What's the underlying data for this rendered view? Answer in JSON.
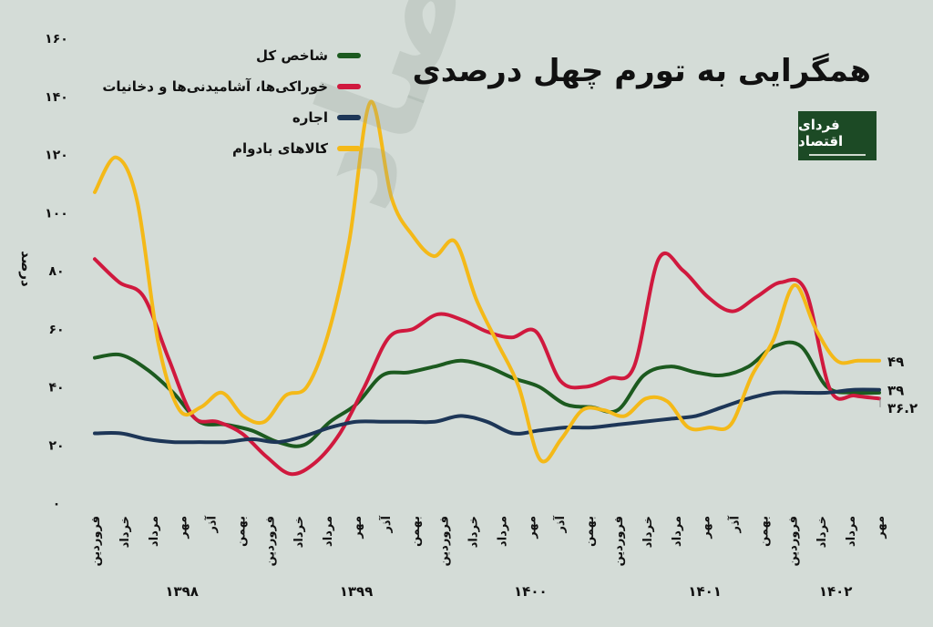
{
  "title": "همگرایی به تورم چهل درصدی",
  "logo": {
    "text": "فردای اقتصاد"
  },
  "chart_data": {
    "type": "line",
    "ylabel": "درصد",
    "ylim": [
      0,
      160
    ],
    "yticks": [
      "۰",
      "۲۰",
      "۴۰",
      "۶۰",
      "۸۰",
      "۱۰۰",
      "۱۲۰",
      "۱۴۰",
      "۱۶۰"
    ],
    "xlabel": "",
    "x_ticks": [
      "فروردین",
      "خرداد",
      "مرداد",
      "مهر",
      "آذر",
      "بهمن",
      "فروردین",
      "خرداد",
      "مرداد",
      "مهر",
      "آذر",
      "بهمن",
      "فروردین",
      "خرداد",
      "مرداد",
      "مهر",
      "آذر",
      "بهمن",
      "فروردین",
      "خرداد",
      "مرداد",
      "مهر",
      "آذر",
      "بهمن",
      "فروردین",
      "خرداد",
      "مرداد",
      "مهر"
    ],
    "year_labels": [
      {
        "label": "۱۳۹۸",
        "at": 3
      },
      {
        "label": "۱۳۹۹",
        "at": 9
      },
      {
        "label": "۱۴۰۰",
        "at": 15
      },
      {
        "label": "۱۴۰۱",
        "at": 21
      },
      {
        "label": "۱۴۰۲",
        "at": 25.5
      }
    ],
    "legend_position": "top-left",
    "end_labels": [
      {
        "label": "۴۹",
        "value": 49
      },
      {
        "label": "۳۹",
        "value": 39
      },
      {
        "label": "۳۶.۲",
        "value": 36.2
      }
    ],
    "series": [
      {
        "name": "شاخص کل",
        "color": "#1c5a1f",
        "values": [
          50,
          51,
          46,
          38,
          28,
          27,
          25,
          21,
          20,
          28,
          34,
          44,
          45,
          47,
          49,
          47,
          43,
          40,
          34,
          33,
          32,
          44,
          47,
          45,
          44,
          47,
          54,
          54,
          40,
          38,
          38
        ]
      },
      {
        "name": "خوراکی‌ها، آشامیدنی‌ها و دخانیات",
        "color": "#d0193e",
        "values": [
          84,
          76,
          71,
          50,
          30,
          28,
          24,
          16,
          10,
          14,
          24,
          40,
          57,
          60,
          65,
          63,
          59,
          57,
          59,
          42,
          40,
          43,
          47,
          84,
          80,
          71,
          66,
          71,
          76,
          73,
          39,
          37,
          36
        ]
      },
      {
        "name": "اجاره",
        "color": "#1d3657",
        "values": [
          24,
          24,
          22,
          21,
          21,
          21,
          22,
          21,
          23,
          26,
          28,
          28,
          28,
          28,
          30,
          28,
          24,
          25,
          26,
          26,
          27,
          28,
          29,
          30,
          33,
          36,
          38,
          38,
          38,
          39,
          39
        ]
      },
      {
        "name": "کالاهای بادوام",
        "color": "#f4b918",
        "values": [
          107,
          119,
          104,
          55,
          32,
          33,
          38,
          30,
          28,
          37,
          40,
          58,
          90,
          138,
          105,
          92,
          85,
          90,
          70,
          55,
          40,
          15,
          22,
          32,
          32,
          30,
          36,
          35,
          26,
          26,
          27,
          44,
          56,
          75,
          60,
          49,
          49,
          49
        ]
      }
    ]
  }
}
